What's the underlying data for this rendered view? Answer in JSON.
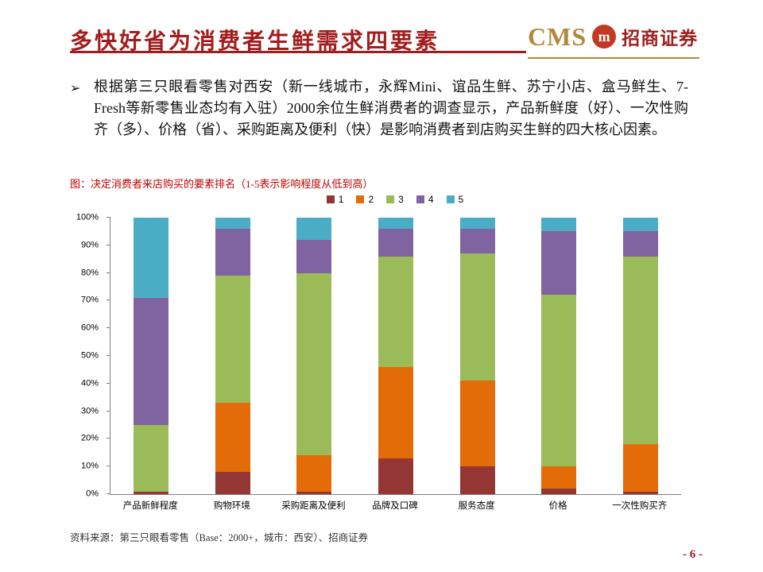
{
  "colors": {
    "accent_red": "#A21C1C",
    "gold": "#B2893B",
    "logo_red": "#C23A23",
    "brand_red": "#9E1F1F",
    "caption_red": "#C00000",
    "axis_gray": "#808080"
  },
  "header": {
    "title": "多快好省为消费者生鲜需求四要素",
    "logo_cms": "CMS",
    "logo_mark": "m",
    "logo_brand": "招商证券"
  },
  "body": {
    "bullet": "➢",
    "text": "根据第三只眼看零售对西安（新一线城市，永辉Mini、谊品生鲜、苏宁小店、盒马鲜生、7-Fresh等新零售业态均有入驻）2000余位生鲜消费者的调查显示，产品新鲜度（好）、一次性购齐（多）、价格（省）、采购距离及便利（快）是影响消费者到店购买生鲜的四大核心因素。"
  },
  "figure": {
    "caption": "图：决定消费者来店购买的要素排名（1-5表示影响程度从低到高）"
  },
  "chart_data": {
    "type": "bar",
    "stacked": true,
    "percent": true,
    "title": "决定消费者来店购买的要素排名（1-5表示影响程度从低到高）",
    "categories": [
      "产品新鲜程度",
      "购物环境",
      "采购距离及便利",
      "品牌及口碑",
      "服务态度",
      "价格",
      "一次性购买齐"
    ],
    "series": [
      {
        "name": "1",
        "color": "#943634",
        "values": [
          1,
          8,
          1,
          13,
          10,
          2,
          1
        ]
      },
      {
        "name": "2",
        "color": "#E36C09",
        "values": [
          0,
          25,
          13,
          33,
          31,
          8,
          17
        ]
      },
      {
        "name": "3",
        "color": "#9BBB59",
        "values": [
          24,
          46,
          66,
          40,
          46,
          62,
          68
        ]
      },
      {
        "name": "4",
        "color": "#8064A2",
        "values": [
          46,
          17,
          12,
          10,
          9,
          23,
          9
        ]
      },
      {
        "name": "5",
        "color": "#4BACC6",
        "values": [
          29,
          4,
          8,
          4,
          4,
          5,
          5
        ]
      }
    ],
    "ylim": [
      0,
      100
    ],
    "ytick_step": 10,
    "ytick_format": "percent",
    "legend_position": "top",
    "grid": false
  },
  "footer": {
    "source": "资料来源：第三只眼看零售（Base：2000+，城市：西安）、招商证券",
    "page_number": "- 6 -"
  }
}
